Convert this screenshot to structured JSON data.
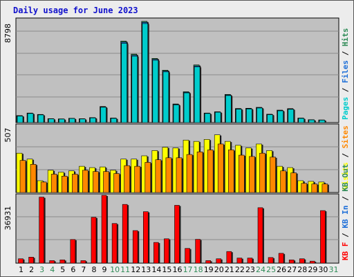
{
  "window": {
    "title": "Daily usage for June 2023"
  },
  "chart_data": [
    {
      "type": "bar",
      "panel": "top",
      "max_label": "8798",
      "ylim": [
        0,
        8798
      ],
      "grid": true,
      "legend": [
        {
          "label": "Pages",
          "color": "#00cccc"
        },
        {
          "label": "Files",
          "color": "#1e6fd8"
        },
        {
          "label": "Hits",
          "color": "#2e8b57"
        }
      ],
      "categories": [
        "1",
        "2",
        "3",
        "4",
        "5",
        "6",
        "7",
        "8",
        "9",
        "10",
        "11",
        "12",
        "13",
        "14",
        "15",
        "16",
        "17",
        "18",
        "19",
        "20",
        "21",
        "22",
        "23",
        "24",
        "25",
        "26",
        "27",
        "28",
        "29",
        "30",
        "31"
      ],
      "series": [
        {
          "name": "Hits",
          "color": "#2e8b57",
          "values": [
            600,
            820,
            700,
            340,
            320,
            370,
            330,
            430,
            1380,
            390,
            7000,
            5880,
            8690,
            5510,
            4500,
            1600,
            2650,
            4950,
            820,
            930,
            2420,
            1210,
            1230,
            1310,
            720,
            1070,
            1200,
            390,
            250,
            230,
            0
          ]
        },
        {
          "name": "Files",
          "color": "#1e6fd8",
          "values": [
            580,
            800,
            680,
            330,
            310,
            360,
            320,
            420,
            1350,
            380,
            6900,
            5780,
            8600,
            5430,
            4420,
            1560,
            2600,
            4860,
            800,
            910,
            2370,
            1180,
            1200,
            1280,
            700,
            1040,
            1170,
            380,
            240,
            220,
            0
          ]
        },
        {
          "name": "Pages",
          "color": "#00cccc",
          "values": [
            560,
            780,
            660,
            320,
            300,
            350,
            310,
            400,
            1320,
            360,
            6800,
            5700,
            8500,
            5350,
            4350,
            1520,
            2550,
            4780,
            780,
            890,
            2320,
            1150,
            1170,
            1250,
            680,
            1010,
            1140,
            360,
            230,
            210,
            0
          ]
        }
      ]
    },
    {
      "type": "bar",
      "panel": "middle",
      "max_label": "507",
      "ylim": [
        0,
        507
      ],
      "grid": true,
      "legend": [
        {
          "label": "Visits",
          "color": "#ffff00"
        },
        {
          "label": "Sites",
          "color": "#ff8800"
        }
      ],
      "categories": [
        "1",
        "2",
        "3",
        "4",
        "5",
        "6",
        "7",
        "8",
        "9",
        "10",
        "11",
        "12",
        "13",
        "14",
        "15",
        "16",
        "17",
        "18",
        "19",
        "20",
        "21",
        "22",
        "23",
        "24",
        "25",
        "26",
        "27",
        "28",
        "29",
        "30",
        "31"
      ],
      "series": [
        {
          "name": "Visits",
          "color": "#ffff00",
          "values": [
            300,
            255,
            90,
            170,
            155,
            165,
            200,
            190,
            195,
            170,
            255,
            255,
            280,
            320,
            345,
            340,
            400,
            390,
            405,
            440,
            390,
            360,
            340,
            370,
            320,
            200,
            190,
            90,
            85,
            80,
            0
          ]
        },
        {
          "name": "Sites",
          "color": "#ff8800",
          "values": [
            245,
            215,
            80,
            140,
            125,
            140,
            170,
            160,
            160,
            145,
            205,
            200,
            230,
            250,
            265,
            265,
            290,
            310,
            325,
            370,
            325,
            285,
            275,
            300,
            270,
            165,
            150,
            70,
            65,
            65,
            0
          ]
        }
      ]
    },
    {
      "type": "bar",
      "panel": "bottom",
      "max_label": "36931",
      "ylim": [
        0,
        36931
      ],
      "grid": true,
      "legend": [
        {
          "label": "KB F",
          "color": "#ff0000"
        },
        {
          "label": "KB In",
          "color": "#1e6fd8"
        },
        {
          "label": "KB Out",
          "color": "#2e8b57"
        }
      ],
      "categories": [
        "1",
        "2",
        "3",
        "4",
        "5",
        "6",
        "7",
        "8",
        "9",
        "10",
        "11",
        "12",
        "13",
        "14",
        "15",
        "16",
        "17",
        "18",
        "19",
        "20",
        "21",
        "22",
        "23",
        "24",
        "25",
        "26",
        "27",
        "28",
        "29",
        "30",
        "31"
      ],
      "series": [
        {
          "name": "KB F",
          "color": "#ff0000",
          "values": [
            2400,
            3300,
            36300,
            1400,
            1800,
            13000,
            1400,
            25200,
            37300,
            21800,
            32300,
            17900,
            28300,
            11400,
            13400,
            31800,
            8100,
            13100,
            1400,
            2400,
            6400,
            2800,
            2800,
            30500,
            3100,
            5400,
            1800,
            2400,
            1100,
            28900,
            0
          ]
        }
      ]
    }
  ],
  "x_labels": [
    "1",
    "2",
    "3",
    "4",
    "5",
    "6",
    "7",
    "8",
    "9",
    "10",
    "11",
    "12",
    "13",
    "14",
    "15",
    "16",
    "17",
    "18",
    "19",
    "20",
    "21",
    "22",
    "23",
    "24",
    "25",
    "26",
    "27",
    "28",
    "29",
    "30",
    "31"
  ],
  "x_label_colors": {
    "weekday": "#000000",
    "weekend": "#2e8b57"
  },
  "weekend_days": [
    "3",
    "4",
    "10",
    "11",
    "17",
    "18",
    "24",
    "25",
    "31"
  ]
}
